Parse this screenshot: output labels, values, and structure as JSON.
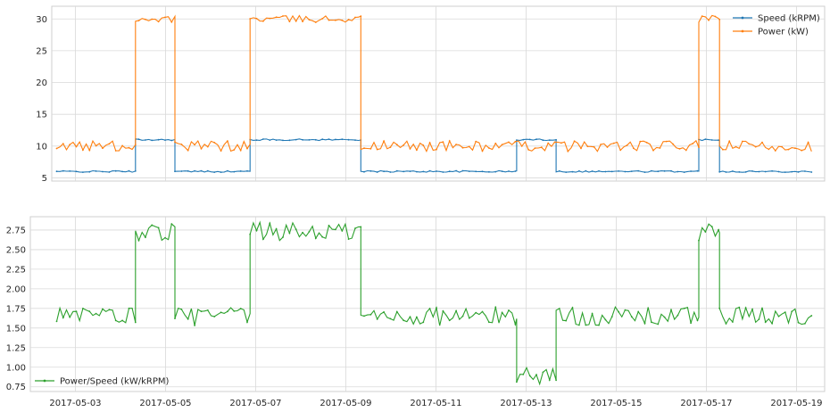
{
  "chart_data": [
    {
      "type": "line",
      "panel": "top",
      "x_ticks": [
        "2017-05-03",
        "2017-05-05",
        "2017-05-07",
        "2017-05-09",
        "2017-05-11",
        "2017-05-13",
        "2017-05-15",
        "2017-05-17",
        "2017-05-19"
      ],
      "y_ticks": [
        "5",
        "10",
        "15",
        "20",
        "25",
        "30"
      ],
      "xlim": [
        "2017-05-02T00:00",
        "2017-05-19T15:00"
      ],
      "ylim": [
        4.5,
        32
      ],
      "grid": true,
      "legend_position": "top-right",
      "series": [
        {
          "name": "Speed (kRPM)",
          "color": "#1f77b4",
          "segments": [
            {
              "from": "2017-05-02T14:00",
              "to": "2017-05-04T08:00",
              "value": 6.0
            },
            {
              "from": "2017-05-04T08:00",
              "to": "2017-05-05T05:00",
              "value": 11.0
            },
            {
              "from": "2017-05-05T05:00",
              "to": "2017-05-06T21:00",
              "value": 6.0
            },
            {
              "from": "2017-05-06T21:00",
              "to": "2017-05-09T08:00",
              "value": 11.0
            },
            {
              "from": "2017-05-09T08:00",
              "to": "2017-05-12T19:00",
              "value": 6.0
            },
            {
              "from": "2017-05-12T19:00",
              "to": "2017-05-13T16:00",
              "value": 11.0
            },
            {
              "from": "2017-05-13T16:00",
              "to": "2017-05-16T20:00",
              "value": 6.0
            },
            {
              "from": "2017-05-16T20:00",
              "to": "2017-05-17T07:00",
              "value": 11.0
            },
            {
              "from": "2017-05-17T07:00",
              "to": "2017-05-19T08:00",
              "value": 6.0
            }
          ]
        },
        {
          "name": "Power (kW)",
          "color": "#ff7f0e",
          "segments": [
            {
              "from": "2017-05-02T14:00",
              "to": "2017-05-04T08:00",
              "value": 10.0
            },
            {
              "from": "2017-05-04T08:00",
              "to": "2017-05-05T05:00",
              "value": 30.0
            },
            {
              "from": "2017-05-05T05:00",
              "to": "2017-05-06T21:00",
              "value": 10.0
            },
            {
              "from": "2017-05-06T21:00",
              "to": "2017-05-09T08:00",
              "value": 30.0
            },
            {
              "from": "2017-05-09T08:00",
              "to": "2017-05-16T20:00",
              "value": 10.0
            },
            {
              "from": "2017-05-16T20:00",
              "to": "2017-05-17T07:00",
              "value": 30.0
            },
            {
              "from": "2017-05-17T07:00",
              "to": "2017-05-19T08:00",
              "value": 10.0
            }
          ]
        }
      ]
    },
    {
      "type": "line",
      "panel": "bottom",
      "x_ticks": [
        "2017-05-03",
        "2017-05-05",
        "2017-05-07",
        "2017-05-09",
        "2017-05-11",
        "2017-05-13",
        "2017-05-15",
        "2017-05-17",
        "2017-05-19"
      ],
      "y_ticks": [
        "0.75",
        "1.00",
        "1.25",
        "1.50",
        "1.75",
        "2.00",
        "2.25",
        "2.50",
        "2.75"
      ],
      "xlim": [
        "2017-05-02T00:00",
        "2017-05-19T15:00"
      ],
      "ylim": [
        0.69,
        2.92
      ],
      "grid": true,
      "legend_position": "bottom-left",
      "series": [
        {
          "name": "Power/Speed (kW/kRPM)",
          "color": "#2ca02c",
          "segments": [
            {
              "from": "2017-05-02T14:00",
              "to": "2017-05-04T08:00",
              "value": 1.65
            },
            {
              "from": "2017-05-04T08:00",
              "to": "2017-05-05T05:00",
              "value": 2.73
            },
            {
              "from": "2017-05-05T05:00",
              "to": "2017-05-06T21:00",
              "value": 1.65
            },
            {
              "from": "2017-05-06T21:00",
              "to": "2017-05-09T08:00",
              "value": 2.73
            },
            {
              "from": "2017-05-09T08:00",
              "to": "2017-05-12T19:00",
              "value": 1.65
            },
            {
              "from": "2017-05-12T19:00",
              "to": "2017-05-13T16:00",
              "value": 0.9
            },
            {
              "from": "2017-05-13T16:00",
              "to": "2017-05-16T20:00",
              "value": 1.65
            },
            {
              "from": "2017-05-16T20:00",
              "to": "2017-05-17T07:00",
              "value": 2.73
            },
            {
              "from": "2017-05-17T07:00",
              "to": "2017-05-19T08:00",
              "value": 1.65
            }
          ]
        }
      ]
    }
  ]
}
